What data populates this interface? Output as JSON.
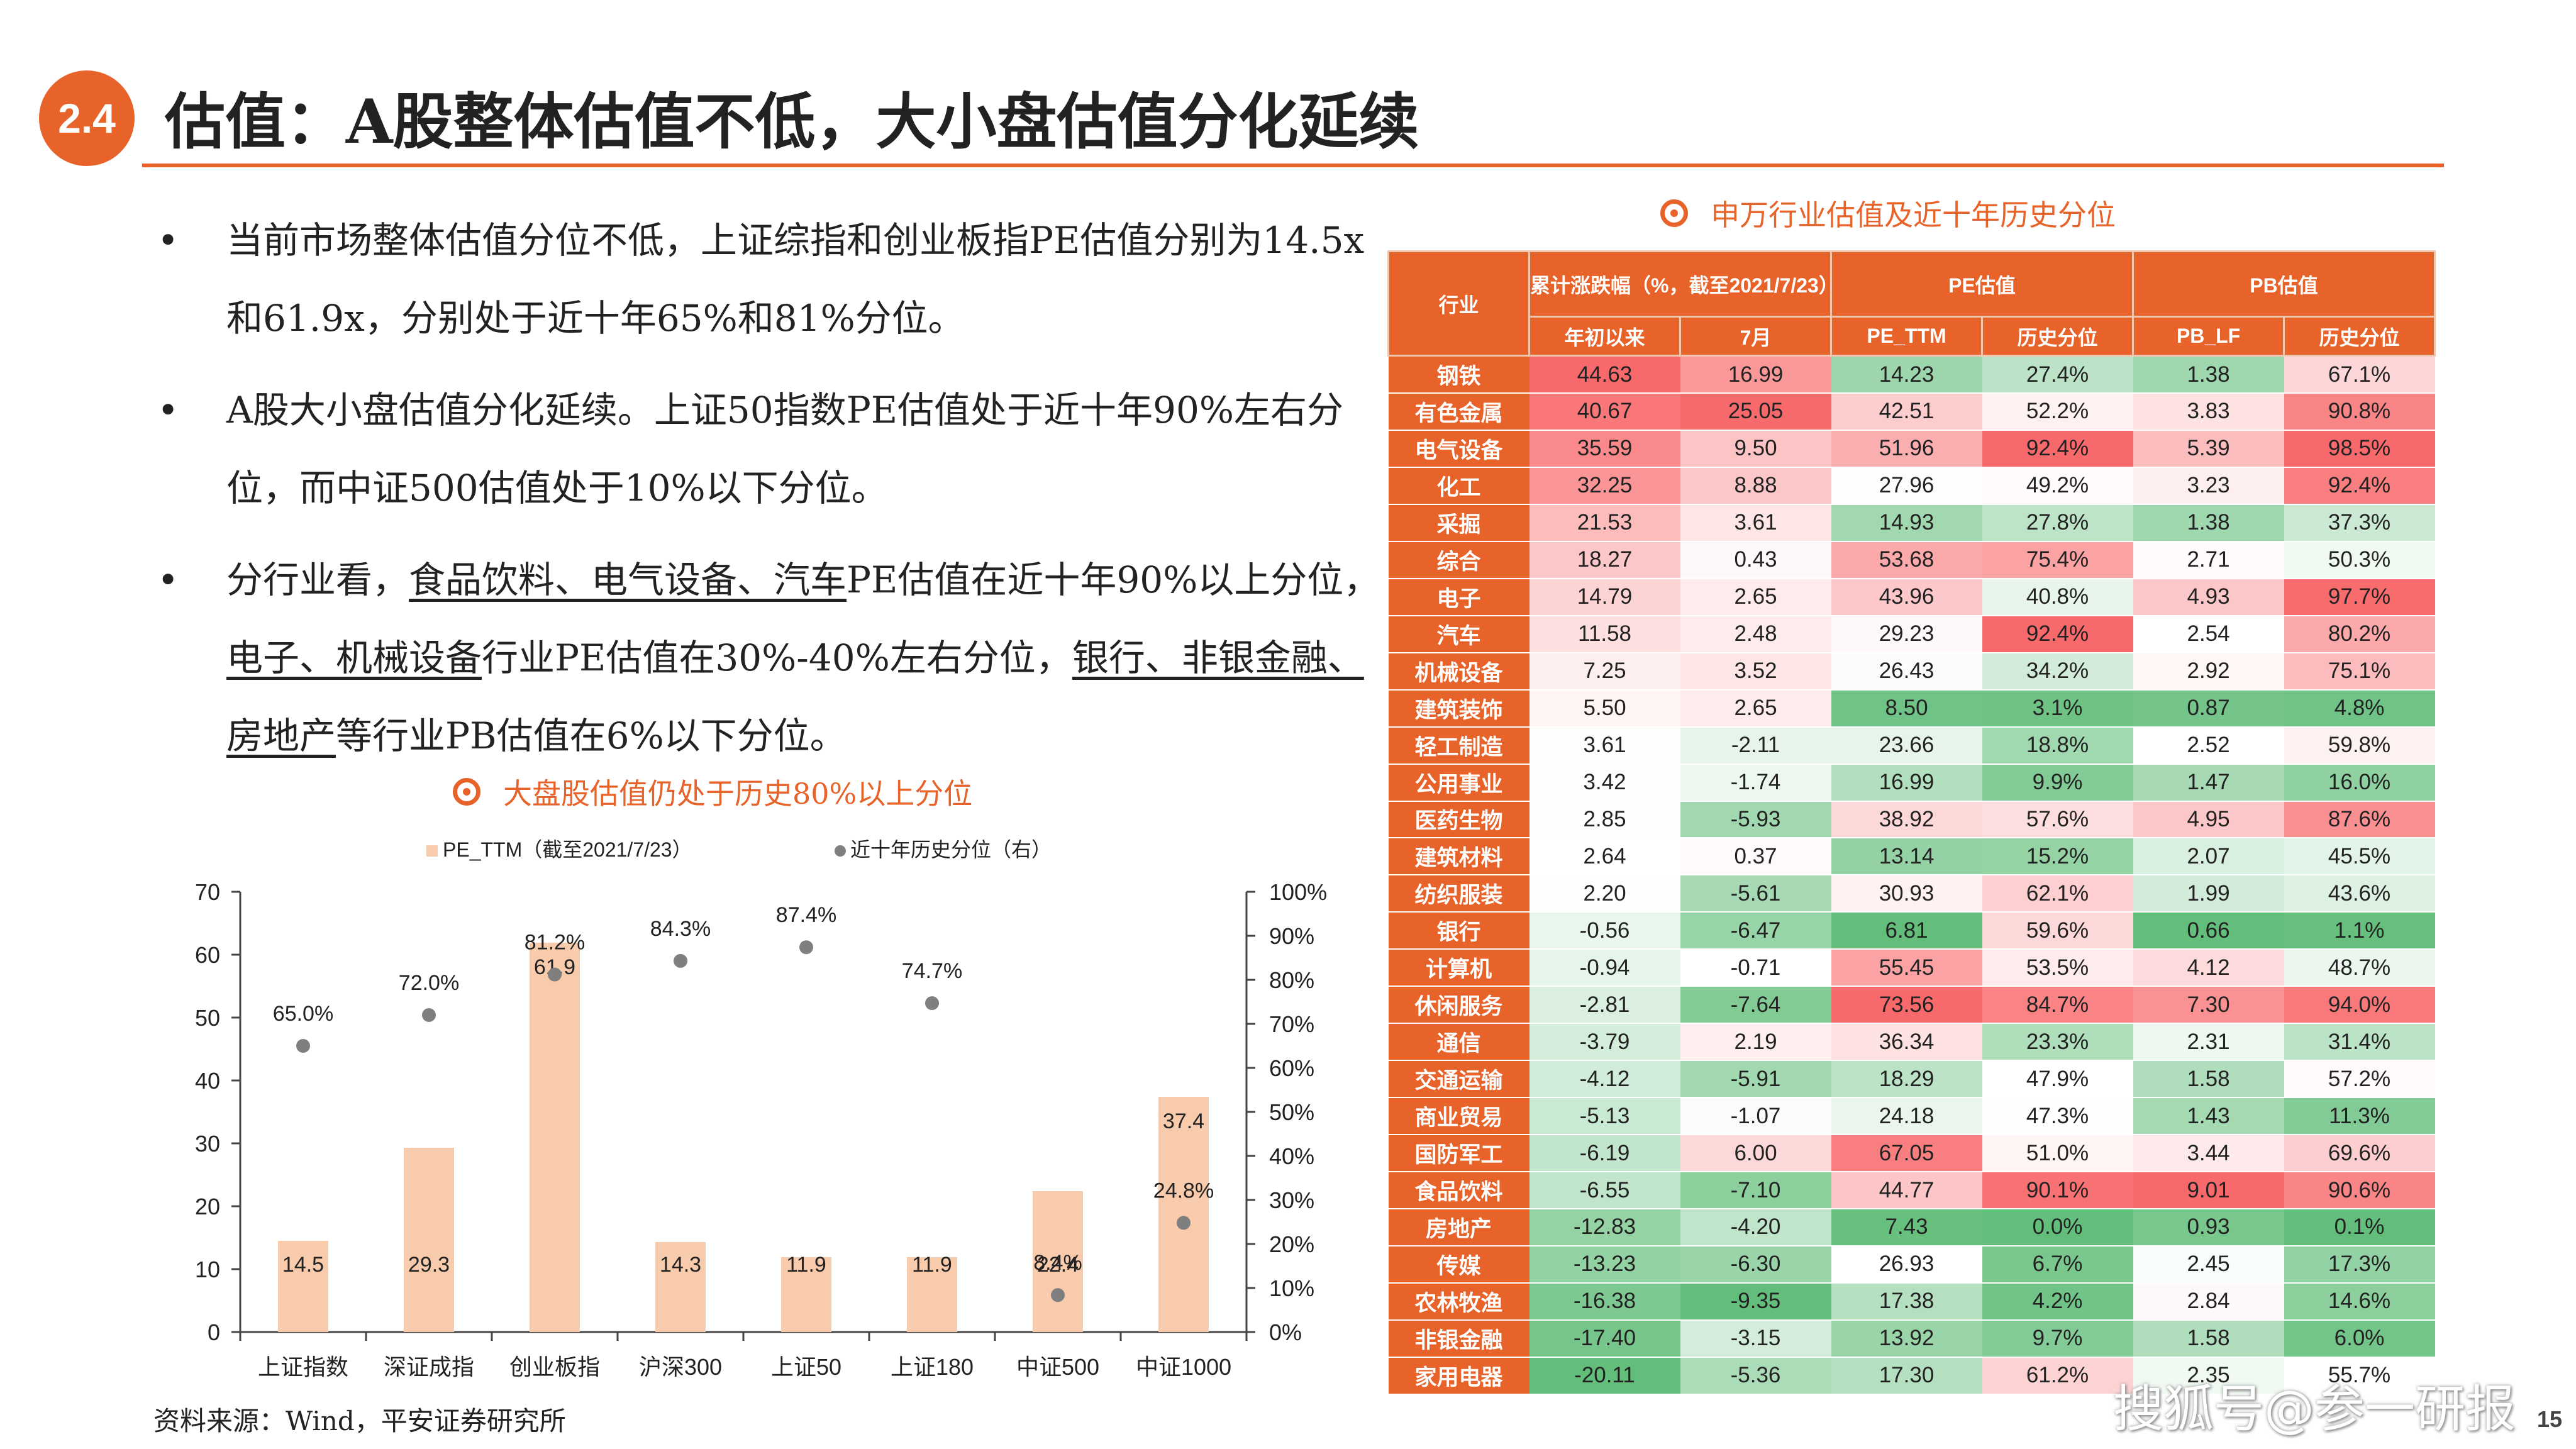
{
  "header": {
    "section_number": "2.4",
    "title": "估值：A股整体估值不低，大小盘估值分化延续"
  },
  "bullets": [
    {
      "segments": [
        {
          "text": "当前市场整体估值分位不低，上证综指和创业板指PE估值分别为14.5x和61.9x，分别处于近十年65%和81%分位。",
          "underline": false
        }
      ]
    },
    {
      "segments": [
        {
          "text": "A股大小盘估值分化延续。上证50指数PE估值处于近十年90%左右分位，而中证500估值处于10%以下分位。",
          "underline": false
        }
      ]
    },
    {
      "segments": [
        {
          "text": "分行业看，",
          "underline": false
        },
        {
          "text": "食品饮料、电气设备、汽车",
          "underline": true
        },
        {
          "text": "PE估值在近十年90%以上分位，",
          "underline": false
        },
        {
          "text": "电子、机械设备",
          "underline": true
        },
        {
          "text": "行业PE估值在30%-40%左右分位，",
          "underline": false
        },
        {
          "text": "银行、非银金融、房地产",
          "underline": true
        },
        {
          "text": "等行业PB估值在6%以下分位。",
          "underline": false
        }
      ]
    }
  ],
  "bullet_glyph": "•",
  "chart_heading": "大盘股估值仍处于历史80%以上分位",
  "table_heading": "申万行业估值及近十年历史分位",
  "source": "资料来源：Wind，平安证券研究所",
  "watermark": "搜狐号@参一研报",
  "page_number": "15",
  "colors": {
    "accent": "#e8632a",
    "bar": "#f8cbad",
    "dot": "#7f7f7f",
    "heat_red": "#f8696b",
    "heat_green": "#63be7b",
    "heat_white": "#ffffff"
  },
  "chart_data": {
    "type": "bar",
    "categories": [
      "上证指数",
      "深证成指",
      "创业板指",
      "沪深300",
      "上证50",
      "上证180",
      "中证500",
      "中证1000"
    ],
    "series": [
      {
        "name": "PE_TTM（截至2021/7/23）",
        "type": "bar",
        "axis": "left",
        "values": [
          14.5,
          29.3,
          61.9,
          14.3,
          11.9,
          11.9,
          22.4,
          37.4
        ],
        "labels": [
          "14.5",
          "29.3",
          "61.9",
          "14.3",
          "11.9",
          "11.9",
          "22.4",
          "37.4"
        ]
      },
      {
        "name": "近十年历史分位（右）",
        "type": "scatter",
        "axis": "right",
        "values": [
          65.0,
          72.0,
          81.2,
          84.3,
          87.4,
          74.7,
          8.4,
          24.8
        ],
        "labels": [
          "65.0%",
          "72.0%",
          "81.2%",
          "84.3%",
          "87.4%",
          "74.7%",
          "8.4%",
          "24.8%"
        ]
      }
    ],
    "ylim": [
      0,
      70
    ],
    "y_ticks": [
      "0",
      "10",
      "20",
      "30",
      "40",
      "50",
      "60",
      "70"
    ],
    "y2lim": [
      0,
      100
    ],
    "y2_ticks": [
      "0%",
      "10%",
      "20%",
      "30%",
      "40%",
      "50%",
      "60%",
      "70%",
      "80%",
      "90%",
      "100%"
    ],
    "legend_position": "top",
    "grid": false
  },
  "table": {
    "headers": {
      "industry": "行业",
      "change_group": "累计涨跌幅（%，截至2021/7/23）",
      "pe_group": "PE估值",
      "pb_group": "PB估值",
      "sub": [
        "年初以来",
        "7月",
        "PE_TTM",
        "历史分位",
        "PB_LF",
        "历史分位"
      ]
    },
    "rows": [
      [
        "钢铁",
        "44.63",
        "16.99",
        "14.23",
        "27.4%",
        "1.38",
        "67.1%"
      ],
      [
        "有色金属",
        "40.67",
        "25.05",
        "42.51",
        "52.2%",
        "3.83",
        "90.8%"
      ],
      [
        "电气设备",
        "35.59",
        "9.50",
        "51.96",
        "92.4%",
        "5.39",
        "98.5%"
      ],
      [
        "化工",
        "32.25",
        "8.88",
        "27.96",
        "49.2%",
        "3.23",
        "92.4%"
      ],
      [
        "采掘",
        "21.53",
        "3.61",
        "14.93",
        "27.8%",
        "1.38",
        "37.3%"
      ],
      [
        "综合",
        "18.27",
        "0.43",
        "53.68",
        "75.4%",
        "2.71",
        "50.3%"
      ],
      [
        "电子",
        "14.79",
        "2.65",
        "43.96",
        "40.8%",
        "4.93",
        "97.7%"
      ],
      [
        "汽车",
        "11.58",
        "2.48",
        "29.23",
        "92.4%",
        "2.54",
        "80.2%"
      ],
      [
        "机械设备",
        "7.25",
        "3.52",
        "26.43",
        "34.2%",
        "2.92",
        "75.1%"
      ],
      [
        "建筑装饰",
        "5.50",
        "2.65",
        "8.50",
        "3.1%",
        "0.87",
        "4.8%"
      ],
      [
        "轻工制造",
        "3.61",
        "-2.11",
        "23.66",
        "18.8%",
        "2.52",
        "59.8%"
      ],
      [
        "公用事业",
        "3.42",
        "-1.74",
        "16.99",
        "9.9%",
        "1.47",
        "16.0%"
      ],
      [
        "医药生物",
        "2.85",
        "-5.93",
        "38.92",
        "57.6%",
        "4.95",
        "87.6%"
      ],
      [
        "建筑材料",
        "2.64",
        "0.37",
        "13.14",
        "15.2%",
        "2.07",
        "45.5%"
      ],
      [
        "纺织服装",
        "2.20",
        "-5.61",
        "30.93",
        "62.1%",
        "1.99",
        "43.6%"
      ],
      [
        "银行",
        "-0.56",
        "-6.47",
        "6.81",
        "59.6%",
        "0.66",
        "1.1%"
      ],
      [
        "计算机",
        "-0.94",
        "-0.71",
        "55.45",
        "53.5%",
        "4.12",
        "48.7%"
      ],
      [
        "休闲服务",
        "-2.81",
        "-7.64",
        "73.56",
        "84.7%",
        "7.30",
        "94.0%"
      ],
      [
        "通信",
        "-3.79",
        "2.19",
        "36.34",
        "23.3%",
        "2.31",
        "31.4%"
      ],
      [
        "交通运输",
        "-4.12",
        "-5.91",
        "18.29",
        "47.9%",
        "1.58",
        "57.2%"
      ],
      [
        "商业贸易",
        "-5.13",
        "-1.07",
        "24.18",
        "47.3%",
        "1.43",
        "11.3%"
      ],
      [
        "国防军工",
        "-6.19",
        "6.00",
        "67.05",
        "51.0%",
        "3.44",
        "69.6%"
      ],
      [
        "食品饮料",
        "-6.55",
        "-7.10",
        "44.77",
        "90.1%",
        "9.01",
        "90.6%"
      ],
      [
        "房地产",
        "-12.83",
        "-4.20",
        "7.43",
        "0.0%",
        "0.93",
        "0.1%"
      ],
      [
        "传媒",
        "-13.23",
        "-6.30",
        "26.93",
        "6.7%",
        "2.45",
        "17.3%"
      ],
      [
        "农林牧渔",
        "-16.38",
        "-9.35",
        "17.38",
        "4.2%",
        "2.84",
        "14.6%"
      ],
      [
        "非银金融",
        "-17.40",
        "-3.15",
        "13.92",
        "9.7%",
        "1.58",
        "6.0%"
      ],
      [
        "家用电器",
        "-20.11",
        "-5.36",
        "17.30",
        "61.2%",
        "2.35",
        "55.7%"
      ]
    ]
  }
}
